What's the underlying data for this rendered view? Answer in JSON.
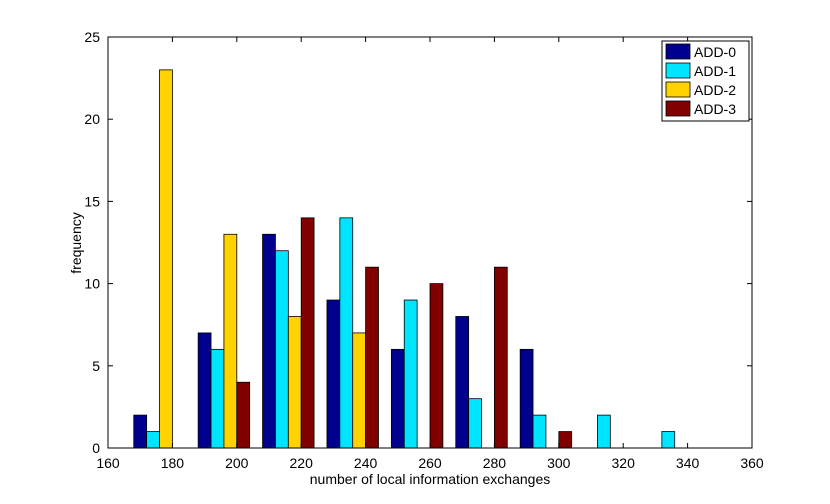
{
  "chart_data": {
    "type": "bar",
    "xlabel": "number of local information exchanges",
    "ylabel": "frequency",
    "xlim": [
      160,
      360
    ],
    "ylim": [
      0,
      25
    ],
    "xticks": [
      "160",
      "180",
      "200",
      "220",
      "240",
      "260",
      "280",
      "300",
      "320",
      "340",
      "360"
    ],
    "yticks": [
      "0",
      "5",
      "10",
      "15",
      "20",
      "25"
    ],
    "bin_centers": [
      175,
      195,
      215,
      235,
      255,
      275,
      295,
      315,
      335
    ],
    "grid": false,
    "legend_position": "top-right",
    "series": [
      {
        "name": "ADD-0",
        "color": "#00008f",
        "x": [
          170,
          190,
          210,
          230,
          250,
          270,
          290
        ],
        "values": [
          2,
          7,
          13,
          9,
          6,
          8,
          6
        ]
      },
      {
        "name": "ADD-1",
        "color": "#00e5ff",
        "x": [
          174,
          194,
          214,
          234,
          254,
          274,
          294,
          314,
          334
        ],
        "values": [
          1,
          6,
          12,
          14,
          9,
          3,
          2,
          2,
          1
        ]
      },
      {
        "name": "ADD-2",
        "color": "#ffd200",
        "x": [
          178,
          198,
          218,
          238
        ],
        "values": [
          23,
          13,
          8,
          7
        ]
      },
      {
        "name": "ADD-3",
        "color": "#800000",
        "x": [
          182,
          202,
          222,
          242,
          262,
          282,
          302
        ],
        "values": [
          0,
          4,
          14,
          11,
          10,
          11,
          1
        ]
      }
    ]
  }
}
